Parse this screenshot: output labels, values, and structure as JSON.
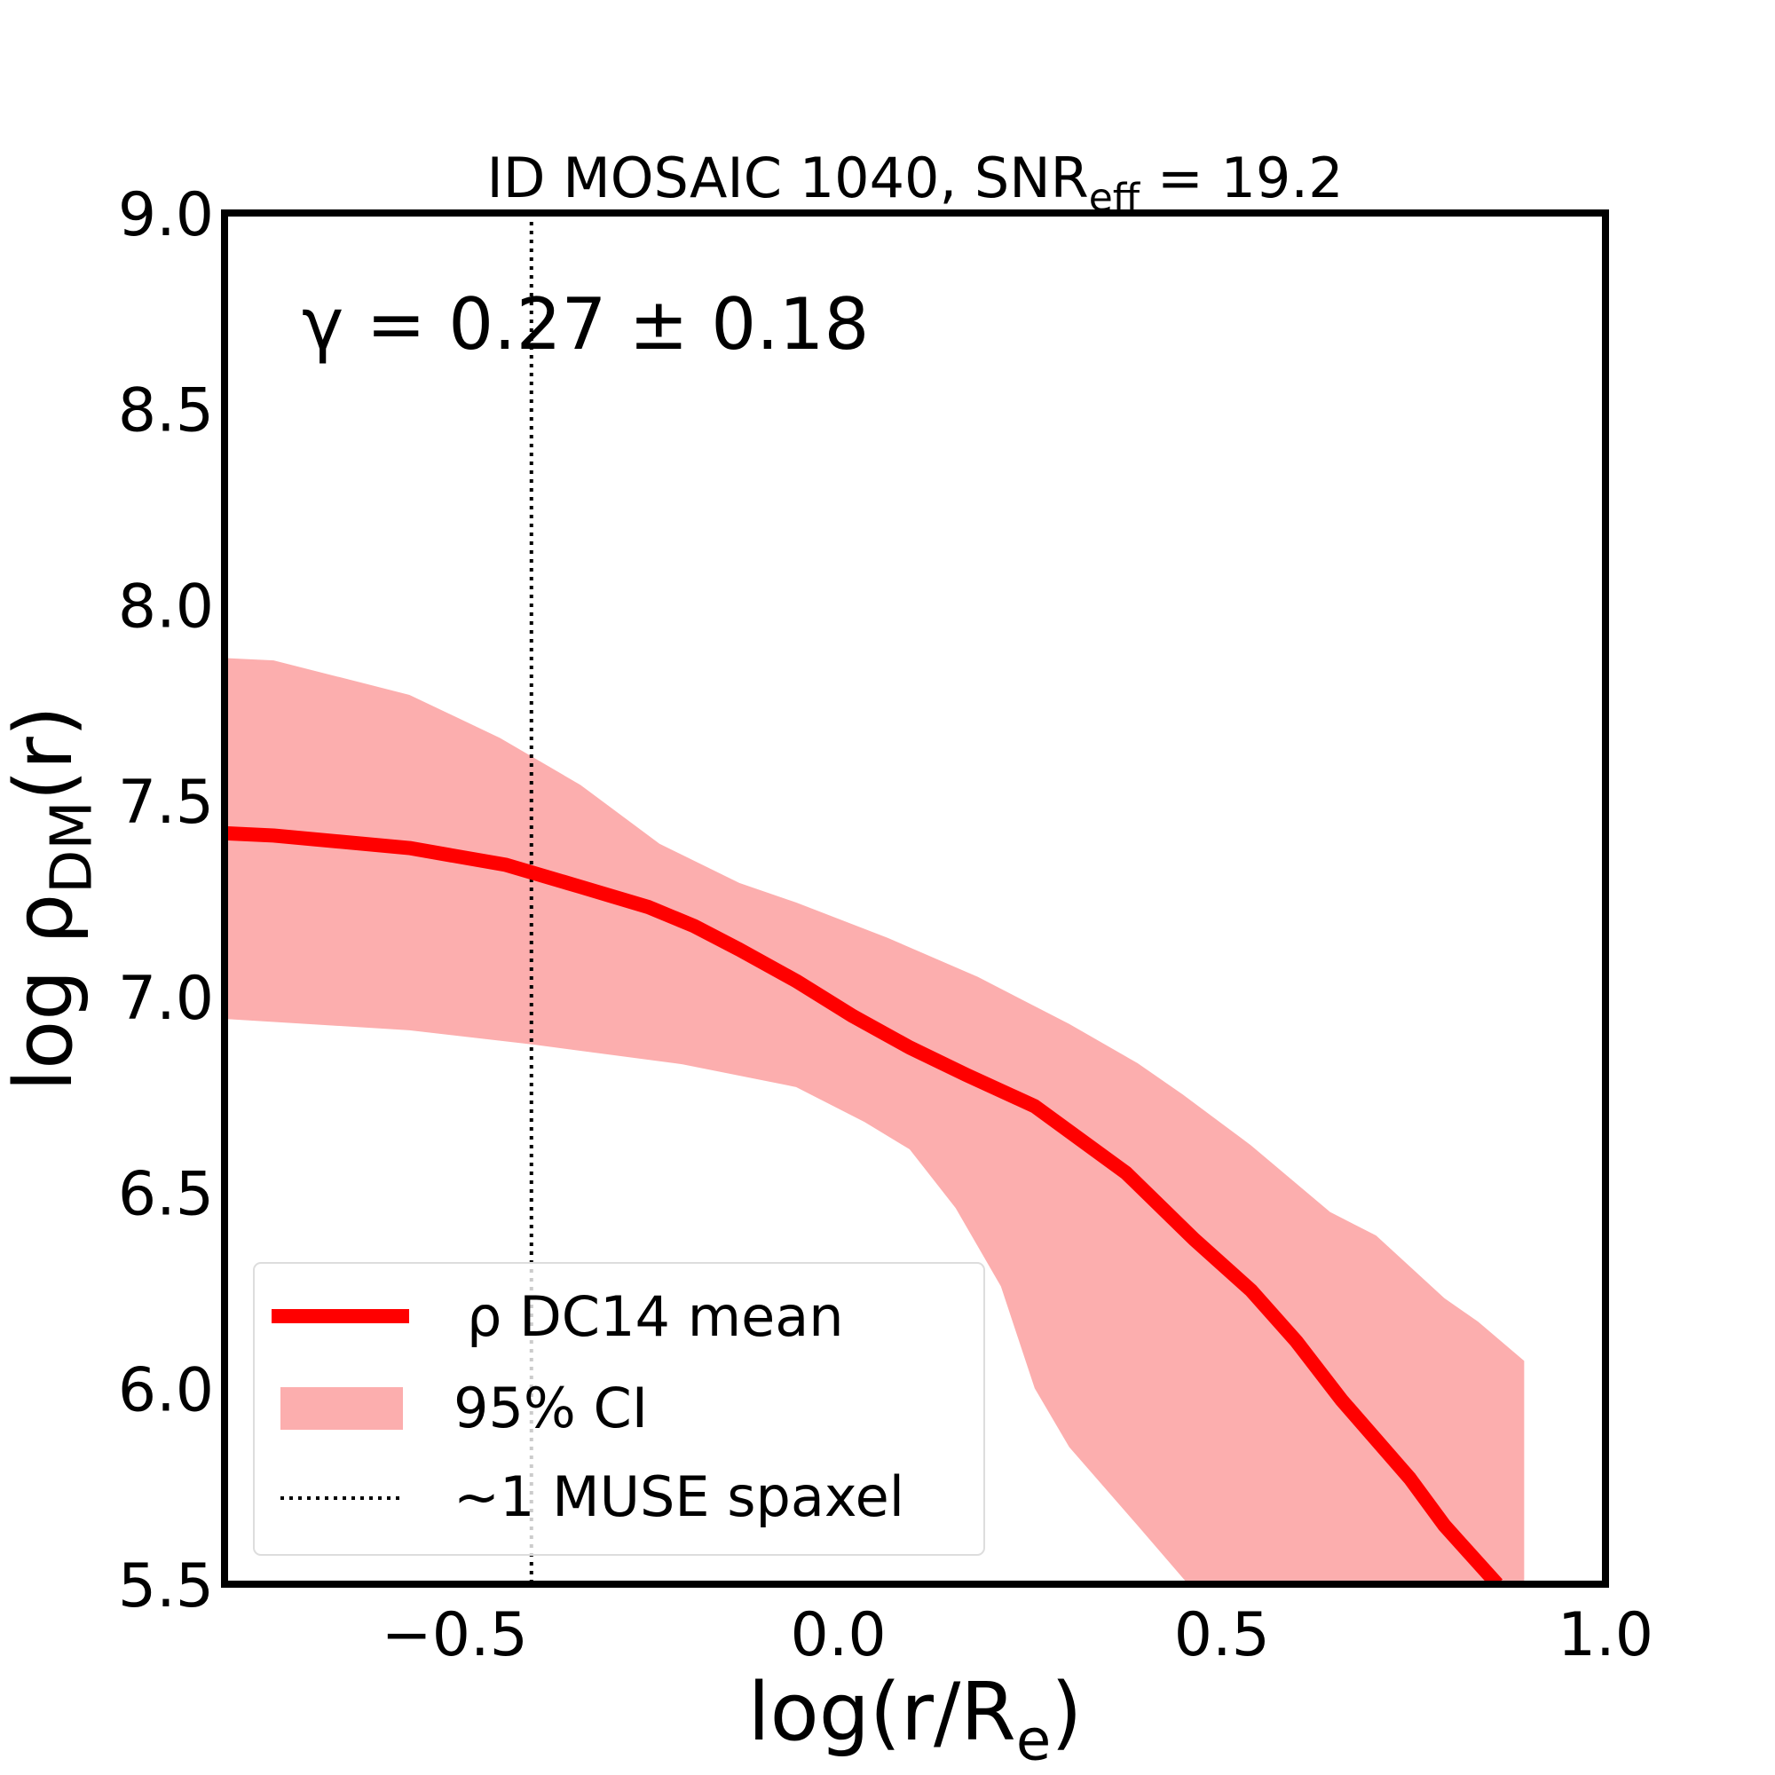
{
  "chart_data": {
    "type": "line",
    "title": [
      "ID MOSAIC 1040, SNR",
      "eff",
      " = 19.2"
    ],
    "xlabel": [
      "log(r/R",
      "e",
      ")"
    ],
    "ylabel": [
      "log ρ",
      "DM",
      "(r)"
    ],
    "annotation": "γ = 0.27 ± 0.18",
    "xlim": [
      -0.8,
      1.0
    ],
    "ylim": [
      5.5,
      9.0
    ],
    "xticks": [
      {
        "value": -0.5,
        "label": "−0.5"
      },
      {
        "value": 0,
        "label": "0.0"
      },
      0.5,
      {
        "value": 1,
        "label": "1.0"
      }
    ],
    "yticks": [
      5.5,
      {
        "value": 6,
        "label": "6.0"
      },
      6.5,
      {
        "value": 7,
        "label": "7.0"
      },
      7.5,
      {
        "value": 8,
        "label": "8.0"
      },
      8.5,
      {
        "value": 9,
        "label": "9.0"
      }
    ],
    "series": [
      {
        "name": "ρ DC14 mean",
        "color": "#ff0000",
        "x": [
          -0.8,
          -0.736,
          -0.559,
          -0.433,
          -0.336,
          -0.247,
          -0.188,
          -0.129,
          -0.055,
          0.019,
          0.093,
          0.167,
          0.256,
          0.375,
          0.464,
          0.538,
          0.597,
          0.656,
          0.745,
          0.79,
          0.859
        ],
        "values": [
          7.417,
          7.411,
          7.379,
          7.336,
          7.28,
          7.228,
          7.18,
          7.12,
          7.04,
          6.95,
          6.87,
          6.8,
          6.72,
          6.55,
          6.38,
          6.25,
          6.12,
          5.97,
          5.77,
          5.65,
          5.5
        ]
      }
    ],
    "band": {
      "name": "95% CI",
      "color": "#fcaeae",
      "x_upper": [
        -0.8,
        -0.736,
        -0.559,
        -0.441,
        -0.336,
        -0.233,
        -0.129,
        -0.055,
        0.064,
        0.182,
        0.301,
        0.39,
        0.449,
        0.538,
        0.641,
        0.701,
        0.79,
        0.834,
        0.894
      ],
      "upper": [
        7.864,
        7.858,
        7.77,
        7.66,
        7.54,
        7.39,
        7.29,
        7.24,
        7.15,
        7.05,
        6.93,
        6.83,
        6.75,
        6.62,
        6.45,
        6.39,
        6.23,
        6.17,
        6.07
      ],
      "x_lower": [
        -0.8,
        -0.559,
        -0.396,
        -0.203,
        -0.055,
        0.034,
        0.093,
        0.153,
        0.212,
        0.256,
        0.301,
        0.39,
        0.456
      ],
      "lower": [
        6.943,
        6.914,
        6.877,
        6.827,
        6.769,
        6.68,
        6.61,
        6.46,
        6.26,
        6.0,
        5.85,
        5.65,
        5.5
      ]
    },
    "vline": {
      "name": "~1 MUSE spaxel",
      "x": -0.4,
      "color": "#000000"
    },
    "legend": "lower left"
  }
}
